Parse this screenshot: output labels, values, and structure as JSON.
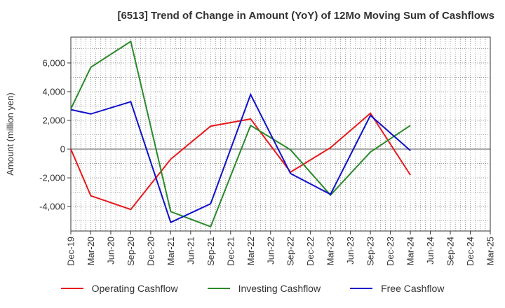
{
  "chart_data": {
    "type": "line",
    "title": "[6513]  Trend of Change in Amount (YoY) of 12Mo Moving Sum of Cashflows",
    "xlabel": "",
    "ylabel": "Amount (million yen)",
    "ylim": [
      -5700,
      7800
    ],
    "yticks": [
      -4000,
      -2000,
      0,
      2000,
      4000,
      6000
    ],
    "ytick_labels": [
      "-4,000",
      "-2,000",
      "0",
      "2,000",
      "4,000",
      "6,000"
    ],
    "categories": [
      "Dec-19",
      "Mar-20",
      "Jun-20",
      "Sep-20",
      "Dec-20",
      "Mar-21",
      "Jun-21",
      "Sep-21",
      "Dec-21",
      "Mar-22",
      "Jun-22",
      "Sep-22",
      "Dec-22",
      "Mar-23",
      "Jun-23",
      "Sep-23",
      "Dec-23",
      "Mar-24",
      "Jun-24",
      "Sep-24",
      "Dec-24",
      "Mar-25"
    ],
    "grid": true,
    "legend_position": "bottom",
    "series": [
      {
        "name": "Operating Cashflow",
        "color": "#e8191b",
        "values": [
          0,
          -3250,
          null,
          -4200,
          null,
          -700,
          null,
          1600,
          null,
          2100,
          null,
          -1600,
          null,
          100,
          null,
          2500,
          null,
          -1800,
          null,
          null,
          null,
          null
        ]
      },
      {
        "name": "Investing Cashflow",
        "color": "#2a8a2a",
        "values": [
          2800,
          5700,
          null,
          7500,
          null,
          -4350,
          null,
          -5400,
          null,
          1650,
          null,
          -50,
          null,
          -3200,
          null,
          -200,
          null,
          1650,
          null,
          null,
          null,
          null
        ]
      },
      {
        "name": "Free Cashflow",
        "color": "#1010cc",
        "values": [
          2750,
          2450,
          null,
          3300,
          null,
          -5100,
          null,
          -3800,
          null,
          3800,
          null,
          -1700,
          null,
          -3150,
          null,
          2350,
          null,
          -100,
          null,
          null,
          null,
          null
        ]
      }
    ]
  }
}
